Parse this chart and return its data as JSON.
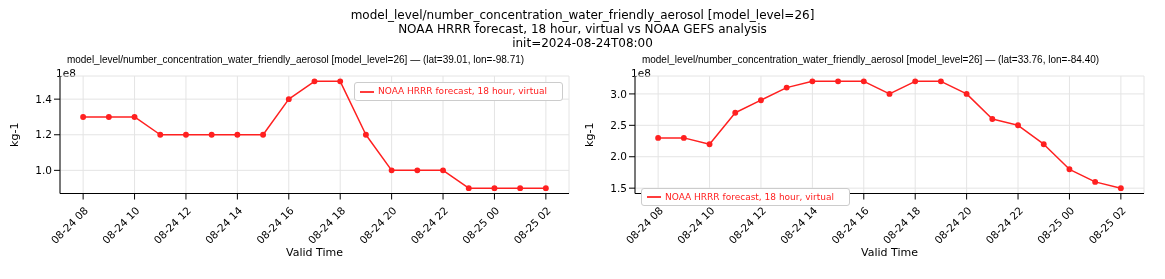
{
  "chart_data": [
    {
      "type": "line",
      "title": "model_level/number_concentration_water_friendly_aerosol [model_level=26] — (lat=39.01, lon=-98.71)",
      "annotations": [
        "model_level/number_concentration_water_friendly_aerosol [model_level=26]\nNOAA HRRR forecast, 18 hour, virtual vs NOAA GEFS analysis\ninit=2024-08-24T08:00",
        "1e8"
      ],
      "xlabel": "Valid Time",
      "ylabel": "kg-1",
      "x": [
        "2024-08-24T08:00",
        "2024-08-24T09:00",
        "2024-08-24T10:00",
        "2024-08-24T11:00",
        "2024-08-24T12:00",
        "2024-08-24T13:00",
        "2024-08-24T14:00",
        "2024-08-24T15:00",
        "2024-08-24T16:00",
        "2024-08-24T17:00",
        "2024-08-24T18:00",
        "2024-08-24T19:00",
        "2024-08-24T20:00",
        "2024-08-24T21:00",
        "2024-08-24T22:00",
        "2024-08-24T23:00",
        "2024-08-25T00:00",
        "2024-08-25T01:00",
        "2024-08-25T02:00"
      ],
      "series": [
        {
          "name": "NOAA HRRR forecast, 18 hour, virtual",
          "color": "#ff2020",
          "values": [
            1.3,
            1.3,
            1.3,
            1.2,
            1.2,
            1.2,
            1.2,
            1.2,
            1.4,
            1.5,
            1.5,
            1.2,
            1.0,
            1.0,
            1.0,
            0.9,
            0.9,
            0.9,
            0.9
          ]
        }
      ],
      "xlim": [
        "2024-08-24T07:06",
        "2024-08-25T02:54"
      ],
      "xticks": [
        {
          "value": "2024-08-24T08:00",
          "label": "08-24 08"
        },
        {
          "value": "2024-08-24T10:00",
          "label": "08-24 10"
        },
        {
          "value": "2024-08-24T12:00",
          "label": "08-24 12"
        },
        {
          "value": "2024-08-24T14:00",
          "label": "08-24 14"
        },
        {
          "value": "2024-08-24T16:00",
          "label": "08-24 16"
        },
        {
          "value": "2024-08-24T18:00",
          "label": "08-24 18"
        },
        {
          "value": "2024-08-24T20:00",
          "label": "08-24 20"
        },
        {
          "value": "2024-08-24T22:00",
          "label": "08-24 22"
        },
        {
          "value": "2024-08-25T00:00",
          "label": "08-25 00"
        },
        {
          "value": "2024-08-25T02:00",
          "label": "08-25 02"
        }
      ],
      "ylim": [
        0.87,
        1.53
      ],
      "yticks": [
        {
          "value": 1.0,
          "label": "1.0"
        },
        {
          "value": 1.2,
          "label": "1.2"
        },
        {
          "value": 1.4,
          "label": "1.4"
        }
      ],
      "grid": true,
      "legend": "top right",
      "marker": "circle",
      "line_style": "solid"
    },
    {
      "type": "line",
      "title": "model_level/number_concentration_water_friendly_aerosol [model_level=26] — (lat=33.76, lon=-84.40)",
      "annotations": [
        "1e8"
      ],
      "xlabel": "Valid Time",
      "ylabel": "kg-1",
      "x": [
        "2024-08-24T08:00",
        "2024-08-24T09:00",
        "2024-08-24T10:00",
        "2024-08-24T11:00",
        "2024-08-24T12:00",
        "2024-08-24T13:00",
        "2024-08-24T14:00",
        "2024-08-24T15:00",
        "2024-08-24T16:00",
        "2024-08-24T17:00",
        "2024-08-24T18:00",
        "2024-08-24T19:00",
        "2024-08-24T20:00",
        "2024-08-24T21:00",
        "2024-08-24T22:00",
        "2024-08-24T23:00",
        "2024-08-25T00:00",
        "2024-08-25T01:00",
        "2024-08-25T02:00"
      ],
      "series": [
        {
          "name": "NOAA HRRR forecast, 18 hour, virtual",
          "color": "#ff2020",
          "values": [
            2.3,
            2.3,
            2.2,
            2.7,
            2.9,
            3.1,
            3.2,
            3.2,
            3.2,
            3.0,
            3.2,
            3.2,
            3.0,
            2.6,
            2.5,
            2.2,
            1.8,
            1.6,
            1.5
          ]
        }
      ],
      "xlim": [
        "2024-08-24T07:06",
        "2024-08-25T02:54"
      ],
      "xticks": [
        {
          "value": "2024-08-24T08:00",
          "label": "08-24 08"
        },
        {
          "value": "2024-08-24T10:00",
          "label": "08-24 10"
        },
        {
          "value": "2024-08-24T12:00",
          "label": "08-24 12"
        },
        {
          "value": "2024-08-24T14:00",
          "label": "08-24 14"
        },
        {
          "value": "2024-08-24T16:00",
          "label": "08-24 16"
        },
        {
          "value": "2024-08-24T18:00",
          "label": "08-24 18"
        },
        {
          "value": "2024-08-24T20:00",
          "label": "08-24 20"
        },
        {
          "value": "2024-08-24T22:00",
          "label": "08-24 22"
        },
        {
          "value": "2024-08-25T00:00",
          "label": "08-25 00"
        },
        {
          "value": "2024-08-25T02:00",
          "label": "08-25 02"
        }
      ],
      "ylim": [
        1.415,
        3.285
      ],
      "yticks": [
        {
          "value": 1.5,
          "label": "1.5"
        },
        {
          "value": 2.0,
          "label": "2.0"
        },
        {
          "value": 2.5,
          "label": "2.5"
        },
        {
          "value": 3.0,
          "label": "3.0"
        }
      ],
      "grid": true,
      "legend": "bottom left",
      "marker": "circle",
      "line_style": "solid"
    }
  ]
}
